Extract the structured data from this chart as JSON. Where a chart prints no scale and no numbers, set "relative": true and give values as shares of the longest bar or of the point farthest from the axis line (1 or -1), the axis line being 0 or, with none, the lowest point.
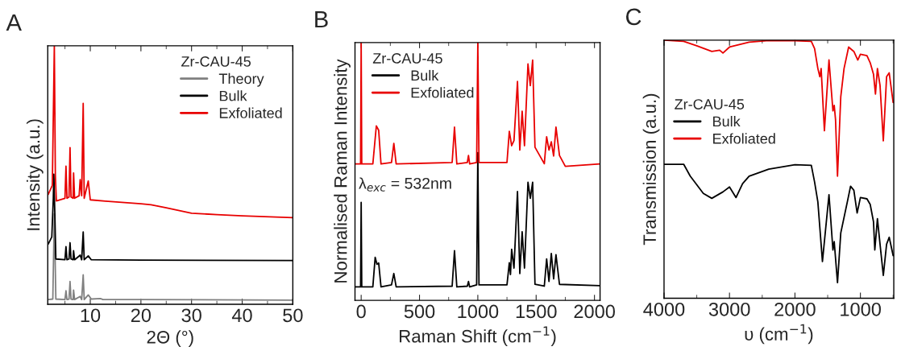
{
  "chart_data": [
    {
      "type": "line",
      "title": "A",
      "xlabel": "2Θ (°)",
      "ylabel": "Intensity (a.u.)",
      "legend_title": "Zr-CAU-45",
      "legend": "top right",
      "relative": true,
      "tick_labels": "x",
      "xlim": [
        1.6,
        50
      ],
      "xticks": [
        10,
        20,
        30,
        40,
        50
      ],
      "series": [
        {
          "name": "Theory",
          "color": "#808080",
          "x": [
            1.7,
            2.6,
            2.9,
            3.2,
            5.0,
            5.2,
            5.4,
            5.8,
            6.0,
            6.2,
            6.6,
            6.7,
            6.9,
            8.0,
            8.3,
            8.6,
            8.8,
            9.6,
            10.2,
            12,
            12.5,
            20,
            50
          ],
          "values": [
            0.018,
            0.02,
            0.35,
            0.02,
            0.018,
            0.052,
            0.018,
            0.02,
            0.088,
            0.02,
            0.018,
            0.055,
            0.018,
            0.03,
            0.018,
            0.114,
            0.018,
            0.036,
            0.02,
            0.022,
            0.018,
            0.018,
            0.016
          ]
        },
        {
          "name": "Bulk",
          "color": "#000000",
          "x": [
            1.7,
            2.4,
            2.7,
            2.8,
            3.0,
            3.2,
            5.0,
            5.2,
            5.4,
            5.8,
            6.0,
            6.2,
            6.6,
            6.7,
            6.9,
            8.0,
            8.3,
            8.6,
            8.8,
            9.6,
            10.2,
            20,
            50
          ],
          "values": [
            0.233,
            0.26,
            0.41,
            0.503,
            0.35,
            0.175,
            0.172,
            0.223,
            0.172,
            0.175,
            0.238,
            0.175,
            0.172,
            0.207,
            0.172,
            0.19,
            0.172,
            0.28,
            0.172,
            0.187,
            0.172,
            0.171,
            0.169
          ]
        },
        {
          "name": "Exfoliated",
          "color": "#e80000",
          "x": [
            1.7,
            2.5,
            2.9,
            3.1,
            3.3,
            5.0,
            5.2,
            5.4,
            5.8,
            6.0,
            6.2,
            6.6,
            6.7,
            6.9,
            7.8,
            8.0,
            8.3,
            8.6,
            8.8,
            9.6,
            10,
            13,
            20,
            22,
            25,
            30,
            35,
            40,
            50
          ],
          "values": [
            0.425,
            0.46,
            1,
            0.5,
            0.4,
            0.41,
            0.534,
            0.41,
            0.415,
            0.606,
            0.415,
            0.41,
            0.508,
            0.41,
            0.42,
            0.482,
            0.42,
            0.777,
            0.41,
            0.477,
            0.404,
            0.399,
            0.389,
            0.385,
            0.373,
            0.352,
            0.347,
            0.342,
            0.335
          ]
        }
      ]
    },
    {
      "type": "line",
      "title": "B",
      "xlabel": "Raman Shift (cm$^{−1}$)",
      "ylabel": "Normalised Raman Intensity",
      "legend_title": "Zr-CAU-45",
      "legend": "top left",
      "relative": true,
      "tick_labels": "x",
      "xlim": [
        -53,
        2048
      ],
      "xticks": [
        0,
        500,
        1000,
        1500,
        2000
      ],
      "annotations": [
        "λ$_{exc}$ = 532nm"
      ],
      "series": [
        {
          "name": "Bulk",
          "color": "#000000",
          "x": [
            -53,
            -5,
            0,
            5,
            100,
            120,
            135,
            150,
            170,
            260,
            280,
            300,
            780,
            800,
            820,
            910,
            920,
            930,
            990,
            1000,
            1010,
            1250,
            1270,
            1280,
            1290,
            1310,
            1340,
            1360,
            1380,
            1400,
            1430,
            1450,
            1470,
            1490,
            1570,
            1590,
            1610,
            1630,
            1650,
            1670,
            1700,
            2048
          ],
          "values": [
            0.052,
            0.052,
            0.38,
            0.052,
            0.052,
            0.167,
            0.14,
            0.145,
            0.052,
            0.06,
            0.104,
            0.052,
            0.055,
            0.193,
            0.052,
            0.055,
            0.073,
            0.052,
            0.06,
            0.573,
            0.06,
            0.06,
            0.146,
            0.1,
            0.198,
            0.125,
            0.422,
            0.104,
            0.266,
            0.125,
            0.458,
            0.396,
            0.458,
            0.062,
            0.055,
            0.161,
            0.073,
            0.182,
            0.083,
            0.177,
            0.062,
            0.057
          ]
        },
        {
          "name": "Exfoliated",
          "color": "#e80000",
          "x": [
            -53,
            -5,
            0,
            5,
            100,
            130,
            150,
            170,
            260,
            280,
            300,
            780,
            800,
            820,
            910,
            920,
            930,
            990,
            1000,
            1010,
            1250,
            1270,
            1290,
            1310,
            1340,
            1360,
            1380,
            1400,
            1430,
            1450,
            1470,
            1490,
            1570,
            1590,
            1610,
            1630,
            1650,
            1670,
            1700,
            1750,
            2048
          ],
          "values": [
            0.529,
            0.529,
            1,
            0.529,
            0.529,
            0.677,
            0.66,
            0.529,
            0.535,
            0.609,
            0.529,
            0.535,
            0.672,
            0.529,
            0.535,
            0.562,
            0.529,
            0.535,
            1,
            0.535,
            0.535,
            0.656,
            0.6,
            0.62,
            0.849,
            0.583,
            0.734,
            0.6,
            0.917,
            0.833,
            0.932,
            0.594,
            0.53,
            0.635,
            0.583,
            0.615,
            0.56,
            0.672,
            0.562,
            0.52,
            0.529
          ]
        }
      ]
    },
    {
      "type": "line",
      "title": "C",
      "xlabel": "υ (cm$^{−1}$)",
      "ylabel": "Transmission (a.u.)",
      "legend_title": "Zr-CAU-45",
      "legend": "left",
      "relative": true,
      "tick_labels": "x",
      "xlim": [
        4000,
        490
      ],
      "xticks": [
        4000,
        3000,
        2000,
        1000
      ],
      "series": [
        {
          "name": "Bulk",
          "color": "#000000",
          "x": [
            4000,
            3700,
            3600,
            3400,
            3270,
            3100,
            3000,
            2900,
            2800,
            2700,
            2400,
            2000,
            1750,
            1700,
            1650,
            1580,
            1480,
            1420,
            1400,
            1350,
            1300,
            1200,
            1150,
            1100,
            1050,
            1000,
            900,
            850,
            800,
            780,
            740,
            700,
            650,
            600,
            560,
            500
          ],
          "values": [
            0.519,
            0.519,
            0.473,
            0.406,
            0.387,
            0.412,
            0.431,
            0.39,
            0.444,
            0.473,
            0.5,
            0.517,
            0.515,
            0.45,
            0.373,
            0.142,
            0.401,
            0.187,
            0.219,
            0.06,
            0.253,
            0.373,
            0.434,
            0.418,
            0.33,
            0.39,
            0.385,
            0.363,
            0.296,
            0.187,
            0.308,
            0.209,
            0.088,
            0.209,
            0.236,
            0.165
          ]
        },
        {
          "name": "Exfoliated",
          "color": "#e80000",
          "x": [
            4000,
            3700,
            3500,
            3270,
            3150,
            3100,
            3000,
            2700,
            2400,
            2000,
            1750,
            1700,
            1650,
            1620,
            1600,
            1550,
            1480,
            1420,
            1400,
            1380,
            1350,
            1300,
            1250,
            1180,
            1100,
            1040,
            1000,
            900,
            850,
            800,
            770,
            740,
            700,
            650,
            600,
            560,
            500
          ],
          "values": [
            1,
            0.995,
            0.978,
            0.956,
            0.961,
            0.95,
            0.973,
            0.992,
            0.998,
            0.998,
            0.995,
            0.967,
            0.89,
            0.858,
            0.89,
            0.649,
            0.923,
            0.726,
            0.747,
            0.692,
            0.473,
            0.781,
            0.89,
            0.973,
            0.956,
            0.923,
            0.945,
            0.94,
            0.912,
            0.868,
            0.791,
            0.89,
            0.824,
            0.61,
            0.858,
            0.873,
            0.758
          ]
        }
      ]
    }
  ]
}
